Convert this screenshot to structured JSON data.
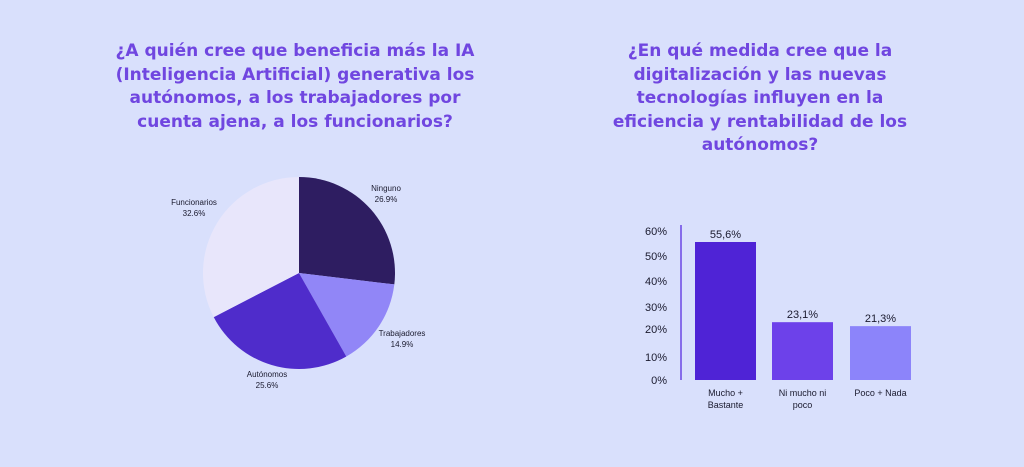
{
  "colors": {
    "background": "#d9e0fc",
    "title": "#7046e0"
  },
  "left": {
    "title": "¿A quién cree que beneficia más la IA (Inteligencia Artificial) generativa los autónomos, a los trabajadores por cuenta ajena, a los funcionarios?"
  },
  "right": {
    "title": "¿En qué medida cree que la digitalización y las nuevas tecnologías influyen en la eficiencia y rentabilidad de los autónomos?"
  },
  "chart_data": [
    {
      "type": "pie",
      "title": "¿A quién cree que beneficia más la IA (Inteligencia Artificial) generativa los autónomos, a los trabajadores por cuenta ajena, a los funcionarios?",
      "slices": [
        {
          "label": "Ninguno",
          "value": 26.9,
          "value_label": "26.9%",
          "color": "#2e1d61"
        },
        {
          "label": "Trabajadores",
          "value": 14.9,
          "value_label": "14.9%",
          "color": "#9186f7"
        },
        {
          "label": "Autónomos",
          "value": 25.6,
          "value_label": "25.6%",
          "color": "#4f2ccb"
        },
        {
          "label": "Funcionarios",
          "value": 32.6,
          "value_label": "32.6%",
          "color": "#e8e6fb"
        }
      ]
    },
    {
      "type": "bar",
      "title": "¿En qué medida cree que la digitalización y las nuevas tecnologías influyen en la eficiencia y rentabilidad de los autónomos?",
      "categories": [
        [
          "Mucho +",
          "Bastante"
        ],
        [
          "Ni mucho ni",
          "poco"
        ],
        [
          "Poco + Nada"
        ]
      ],
      "values": [
        55.6,
        23.1,
        21.3
      ],
      "value_labels": [
        "55,6%",
        "23,1%",
        "21,3%"
      ],
      "colors": [
        "#4f23d6",
        "#6d41ea",
        "#8c84fa"
      ],
      "yticks": [
        "60%",
        "50%",
        "40%",
        "30%",
        "20%",
        "10%",
        "0%"
      ],
      "ylim": [
        0,
        60
      ]
    }
  ]
}
